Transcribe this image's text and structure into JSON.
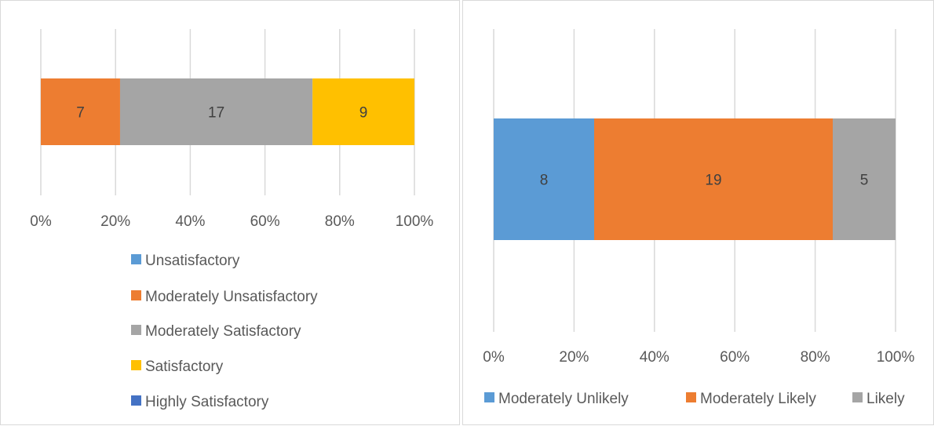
{
  "chart_data": [
    {
      "type": "bar",
      "orientation": "horizontal",
      "stacking": "percent",
      "x_ticks": [
        "0%",
        "20%",
        "40%",
        "60%",
        "80%",
        "100%"
      ],
      "xlim": [
        0,
        100
      ],
      "grid": true,
      "legend_position": "bottom",
      "series": [
        {
          "name": "Unsatisfactory",
          "values": [
            0
          ],
          "color": "#5B9BD5"
        },
        {
          "name": "Moderately Unsatisfactory",
          "values": [
            7
          ],
          "color": "#ED7D31"
        },
        {
          "name": "Moderately Satisfactory",
          "values": [
            17
          ],
          "color": "#A5A5A5"
        },
        {
          "name": "Satisfactory",
          "values": [
            9
          ],
          "color": "#FFC000"
        },
        {
          "name": "Highly Satisfactory",
          "values": [
            0
          ],
          "color": "#4472C4"
        }
      ],
      "data_labels": [
        "7",
        "17",
        "9"
      ]
    },
    {
      "type": "bar",
      "orientation": "horizontal",
      "stacking": "percent",
      "x_ticks": [
        "0%",
        "20%",
        "40%",
        "60%",
        "80%",
        "100%"
      ],
      "xlim": [
        0,
        100
      ],
      "grid": true,
      "legend_position": "bottom",
      "series": [
        {
          "name": "Moderately Unlikely",
          "values": [
            8
          ],
          "color": "#5B9BD5"
        },
        {
          "name": "Moderately Likely",
          "values": [
            19
          ],
          "color": "#ED7D31"
        },
        {
          "name": "Likely",
          "values": [
            5
          ],
          "color": "#A5A5A5"
        }
      ],
      "data_labels": [
        "8",
        "19",
        "5"
      ]
    }
  ],
  "colors": {
    "gridline": "#d9d9d9",
    "text": "#595959",
    "label": "#404040"
  }
}
